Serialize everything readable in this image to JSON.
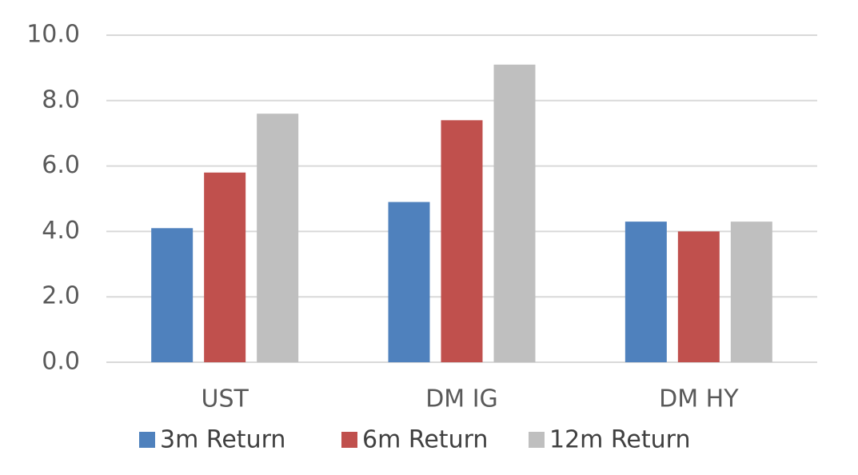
{
  "chart_data": {
    "type": "bar",
    "categories": [
      "UST",
      "DM IG",
      "DM HY"
    ],
    "series": [
      {
        "name": "3m Return",
        "color": "#4f81bd",
        "values": [
          4.1,
          4.9,
          4.3
        ]
      },
      {
        "name": "6m Return",
        "color": "#c0504d",
        "values": [
          5.8,
          7.4,
          4.0
        ]
      },
      {
        "name": "12m Return",
        "color": "#bfbfbf",
        "values": [
          7.6,
          9.1,
          4.3
        ]
      }
    ],
    "ylim": [
      0,
      10
    ],
    "yticks": [
      {
        "value": 0,
        "label": "0.0"
      },
      {
        "value": 2,
        "label": "2.0"
      },
      {
        "value": 4,
        "label": "4.0"
      },
      {
        "value": 6,
        "label": "6.0"
      },
      {
        "value": 8,
        "label": "8.0"
      },
      {
        "value": 10,
        "label": "10.0"
      }
    ],
    "grid": true,
    "legend": "bottom"
  }
}
